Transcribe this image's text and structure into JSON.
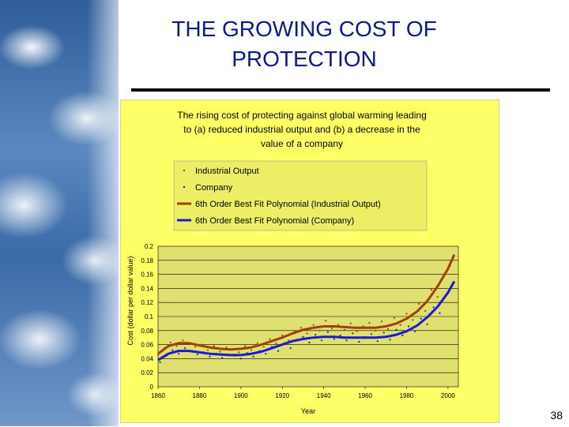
{
  "slide": {
    "title_line1": "THE GROWING COST OF",
    "title_line2": "PROTECTION",
    "page_number": "38"
  },
  "colors": {
    "title": "#0b1a8a",
    "chart_bg": "#ffff66",
    "plot_bg": "#e0e070",
    "industrial": "#a0400c",
    "company": "#1a1ad0",
    "legend_bg": "#eded66"
  },
  "chart_data": {
    "type": "scatter",
    "title_lines": [
      "The rising cost of protecting against global warming leading",
      "to (a) reduced industrial output and (b) a decrease in the",
      "value of a company"
    ],
    "xlabel": "Year",
    "ylabel": "Cost (dollar per dollar value)",
    "xlim": [
      1860,
      2005
    ],
    "ylim": [
      0,
      0.2
    ],
    "x_ticks": [
      1860,
      1880,
      1900,
      1920,
      1940,
      1960,
      1980,
      2000
    ],
    "y_ticks": [
      0,
      0.02,
      0.04,
      0.06,
      0.08,
      0.1,
      0.12,
      0.14,
      0.16,
      0.18,
      0.2
    ],
    "y_tick_labels": [
      "0",
      "0.02",
      "0.04",
      "0.06",
      "0.08",
      "0.1",
      "0.12",
      "0.14",
      "0.16",
      "0.18",
      "0.2"
    ],
    "grid": true,
    "legend_position": "top",
    "legend": [
      {
        "label": "Industrial Output",
        "kind": "marker"
      },
      {
        "label": "Company",
        "kind": "marker"
      },
      {
        "label": "6th Order Best Fit Polynomial (Industrial Output)",
        "kind": "line"
      },
      {
        "label": "6th Order Best Fit Polynomial (Company)",
        "kind": "line"
      }
    ],
    "series": [
      {
        "name": "6th Order Best Fit Polynomial (Industrial Output)",
        "kind": "line",
        "x": [
          1860,
          1865,
          1870,
          1875,
          1880,
          1885,
          1890,
          1895,
          1900,
          1905,
          1910,
          1915,
          1920,
          1925,
          1930,
          1935,
          1940,
          1945,
          1950,
          1955,
          1960,
          1965,
          1970,
          1975,
          1980,
          1985,
          1990,
          1995,
          2000,
          2003
        ],
        "y": [
          0.047,
          0.058,
          0.062,
          0.062,
          0.059,
          0.056,
          0.054,
          0.053,
          0.054,
          0.056,
          0.06,
          0.065,
          0.07,
          0.076,
          0.081,
          0.084,
          0.086,
          0.086,
          0.085,
          0.084,
          0.084,
          0.084,
          0.086,
          0.09,
          0.097,
          0.107,
          0.122,
          0.143,
          0.168,
          0.188
        ]
      },
      {
        "name": "6th Order Best Fit Polynomial (Company)",
        "kind": "line",
        "x": [
          1860,
          1865,
          1870,
          1875,
          1880,
          1885,
          1890,
          1895,
          1900,
          1905,
          1910,
          1915,
          1920,
          1925,
          1930,
          1935,
          1940,
          1945,
          1950,
          1955,
          1960,
          1965,
          1970,
          1975,
          1980,
          1985,
          1990,
          1995,
          2000,
          2003
        ],
        "y": [
          0.038,
          0.047,
          0.051,
          0.051,
          0.049,
          0.047,
          0.046,
          0.045,
          0.045,
          0.047,
          0.05,
          0.055,
          0.06,
          0.065,
          0.068,
          0.07,
          0.071,
          0.071,
          0.07,
          0.07,
          0.07,
          0.07,
          0.071,
          0.074,
          0.079,
          0.087,
          0.099,
          0.114,
          0.134,
          0.15
        ]
      },
      {
        "name": "Industrial Output",
        "kind": "scatter",
        "x": [
          1860,
          1863,
          1866,
          1869,
          1872,
          1875,
          1878,
          1881,
          1884,
          1887,
          1890,
          1893,
          1896,
          1899,
          1902,
          1905,
          1908,
          1911,
          1914,
          1917,
          1920,
          1923,
          1926,
          1929,
          1932,
          1935,
          1938,
          1941,
          1944,
          1947,
          1950,
          1953,
          1956,
          1959,
          1962,
          1965,
          1968,
          1971,
          1974,
          1977,
          1980,
          1983,
          1986,
          1989,
          1992,
          1995,
          1998,
          2001
        ],
        "y": [
          0.045,
          0.055,
          0.063,
          0.058,
          0.066,
          0.062,
          0.057,
          0.06,
          0.052,
          0.058,
          0.05,
          0.056,
          0.053,
          0.049,
          0.058,
          0.052,
          0.062,
          0.057,
          0.068,
          0.062,
          0.073,
          0.066,
          0.079,
          0.084,
          0.076,
          0.088,
          0.08,
          0.094,
          0.083,
          0.088,
          0.081,
          0.09,
          0.079,
          0.086,
          0.091,
          0.08,
          0.093,
          0.082,
          0.098,
          0.088,
          0.104,
          0.095,
          0.118,
          0.108,
          0.138,
          0.128,
          0.158,
          0.172
        ]
      },
      {
        "name": "Company",
        "kind": "scatter",
        "x": [
          1861,
          1864,
          1867,
          1870,
          1873,
          1876,
          1879,
          1882,
          1885,
          1888,
          1891,
          1894,
          1897,
          1900,
          1903,
          1906,
          1909,
          1912,
          1915,
          1918,
          1921,
          1924,
          1927,
          1930,
          1933,
          1936,
          1939,
          1942,
          1945,
          1948,
          1951,
          1954,
          1957,
          1960,
          1963,
          1966,
          1969,
          1972,
          1975,
          1978,
          1981,
          1984,
          1987,
          1990,
          1993,
          1996,
          1999,
          2002
        ],
        "y": [
          0.035,
          0.044,
          0.052,
          0.047,
          0.055,
          0.05,
          0.046,
          0.049,
          0.043,
          0.047,
          0.041,
          0.046,
          0.044,
          0.04,
          0.048,
          0.043,
          0.051,
          0.047,
          0.057,
          0.051,
          0.062,
          0.055,
          0.067,
          0.071,
          0.063,
          0.074,
          0.066,
          0.078,
          0.068,
          0.073,
          0.066,
          0.076,
          0.064,
          0.071,
          0.075,
          0.065,
          0.077,
          0.067,
          0.081,
          0.073,
          0.086,
          0.079,
          0.097,
          0.089,
          0.113,
          0.105,
          0.13,
          0.145
        ]
      }
    ]
  }
}
